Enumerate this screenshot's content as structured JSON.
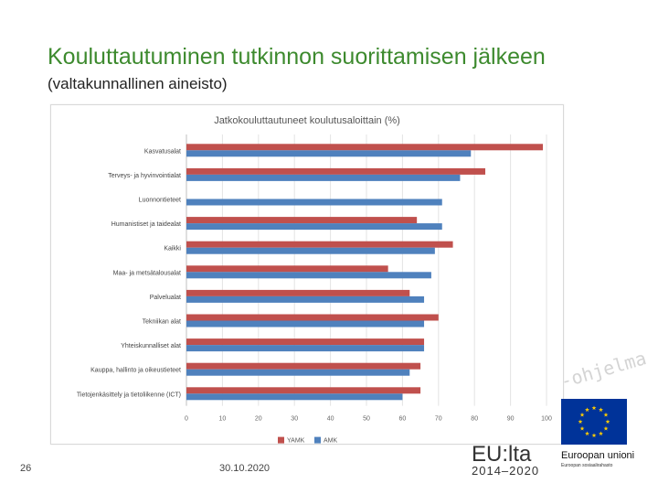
{
  "slide": {
    "title": "Kouluttautuminen tutkinnon suorittamisen jälkeen",
    "subtitle": "(valtakunnallinen aineisto)",
    "page_number": "26",
    "date": "30.10.2020",
    "watermark": "-ohjelma",
    "eu_logo_text": "EU:lta",
    "eu_logo_years": "2014–2020",
    "eu_union_text": "Euroopan unioni",
    "eu_union_subtext": "Euroopan sosiaalirahasto"
  },
  "colors": {
    "yamk": "#c0504d",
    "amk": "#4f81bd",
    "title": "#3d8a2e",
    "eu_blue": "#003399",
    "eu_star": "#ffcc00"
  },
  "chart_data": {
    "type": "bar",
    "orientation": "horizontal",
    "title": "Jatkokouluttautuneet koulutusaloittain (%)",
    "categories": [
      "Kasvatusalat",
      "Terveys- ja hyvinvointialat",
      "Luonnontieteet",
      "Humanistiset ja taidealat",
      "Kaikki",
      "Maa- ja metsätalousalat",
      "Palvelualat",
      "Tekniikan alat",
      "Yhteiskunnalliset alat",
      "Kauppa, hallinto ja oikeustieteet",
      "Tietojenkäsittely ja tietoliikenne (ICT)"
    ],
    "series": [
      {
        "name": "YAMK",
        "values": [
          99,
          83,
          null,
          64,
          74,
          56,
          62,
          70,
          66,
          65,
          65
        ]
      },
      {
        "name": "AMK",
        "values": [
          79,
          76,
          71,
          71,
          69,
          68,
          66,
          66,
          66,
          62,
          60
        ]
      }
    ],
    "xlim": [
      0,
      100
    ],
    "xticks": [
      "0",
      "10",
      "20",
      "30",
      "40",
      "50",
      "60",
      "70",
      "80",
      "90",
      "100"
    ],
    "legend_position": "bottom",
    "grid": true
  }
}
